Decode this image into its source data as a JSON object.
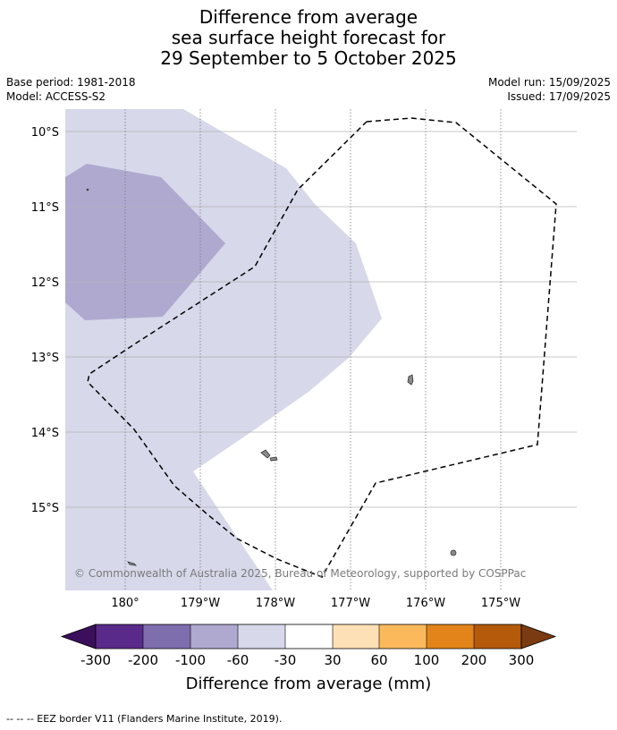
{
  "title": {
    "line1": "Difference from average",
    "line2": "sea surface height forecast for",
    "line3": "29 September to 5 October 2025"
  },
  "meta": {
    "base_period": "Base period: 1981-2018",
    "model": "Model: ACCESS-S2",
    "model_run": "Model run: 15/09/2025",
    "issued": "Issued: 17/09/2025"
  },
  "map": {
    "lat_labels": [
      "10°S",
      "11°S",
      "12°S",
      "13°S",
      "14°S",
      "15°S"
    ],
    "lon_labels": [
      "180°",
      "179°W",
      "178°W",
      "177°W",
      "176°W",
      "175°W"
    ],
    "copyright": "© Commonwealth of Australia 2025, Bureau of Meteorology, supported by COSPPac"
  },
  "colorbar": {
    "title": "Difference from average (mm)",
    "labels": [
      "-300",
      "-200",
      "-100",
      "-60",
      "-30",
      "30",
      "60",
      "100",
      "200",
      "300"
    ],
    "colors": [
      "#3b0f5c",
      "#5a2a8a",
      "#7f6eae",
      "#afa9d0",
      "#d7d8ea",
      "#ffffff",
      "#fde0b5",
      "#fbb95c",
      "#e3841a",
      "#b45a0a",
      "#7b3b12"
    ]
  },
  "footer": "--  --  -- EEZ border V11 (Flanders Marine Institute, 2019)."
}
